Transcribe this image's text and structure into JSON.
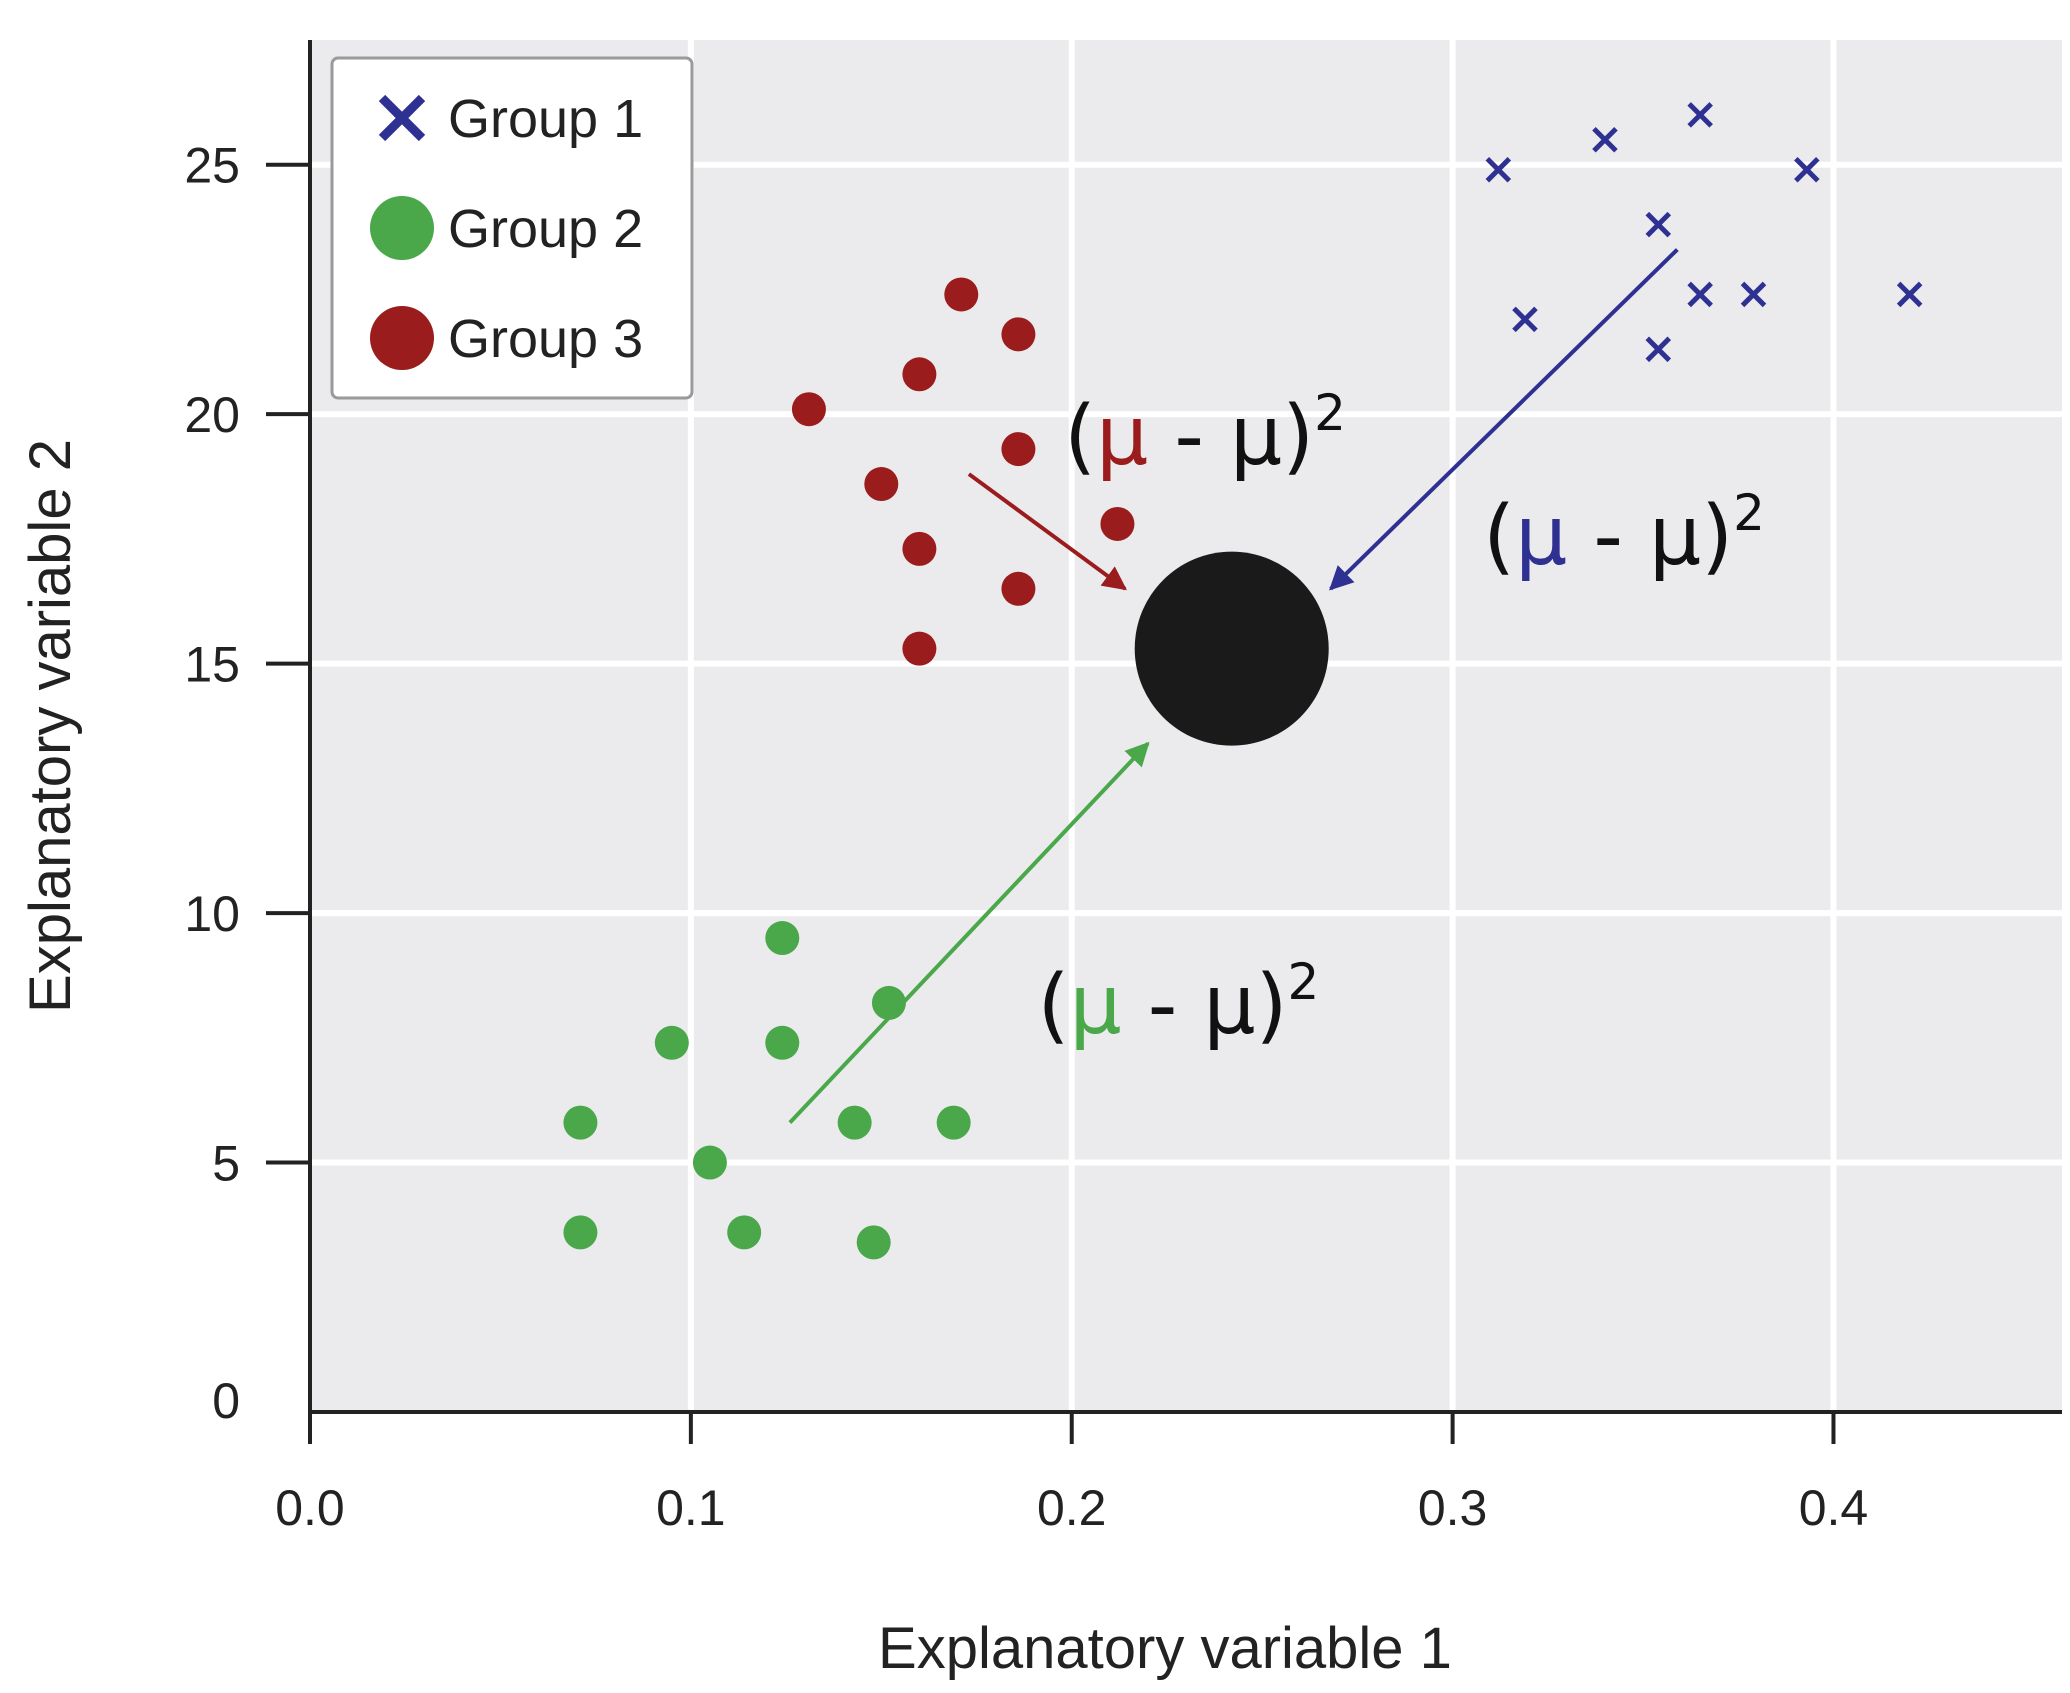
{
  "chart_data": {
    "type": "scatter",
    "title": "",
    "xlabel": "Explanatory variable 1",
    "ylabel": "Explanatory variable 2",
    "xlim": [
      0.0,
      0.46
    ],
    "ylim": [
      0,
      27.5
    ],
    "xticks": [
      0.0,
      0.1,
      0.2,
      0.3,
      0.4
    ],
    "xtick_labels": [
      "0.0",
      "0.1",
      "0.2",
      "0.3",
      "0.4"
    ],
    "yticks": [
      0,
      5,
      10,
      15,
      20,
      25
    ],
    "ytick_labels": [
      "0",
      "5",
      "10",
      "15",
      "20",
      "25"
    ],
    "grid": true,
    "legend_position": "top-left",
    "series": [
      {
        "name": "Group 1",
        "marker": "x",
        "color": "#2e3192",
        "points": [
          [
            0.312,
            24.9
          ],
          [
            0.34,
            25.5
          ],
          [
            0.365,
            26.0
          ],
          [
            0.393,
            24.9
          ],
          [
            0.354,
            23.8
          ],
          [
            0.319,
            21.9
          ],
          [
            0.365,
            22.4
          ],
          [
            0.379,
            22.4
          ],
          [
            0.42,
            22.4
          ],
          [
            0.354,
            21.3
          ]
        ]
      },
      {
        "name": "Group 2",
        "marker": "circle",
        "color": "#4aa84a",
        "points": [
          [
            0.124,
            9.5
          ],
          [
            0.095,
            7.4
          ],
          [
            0.124,
            7.4
          ],
          [
            0.152,
            8.2
          ],
          [
            0.071,
            5.8
          ],
          [
            0.143,
            5.8
          ],
          [
            0.169,
            5.8
          ],
          [
            0.105,
            5.0
          ],
          [
            0.071,
            3.6
          ],
          [
            0.114,
            3.6
          ],
          [
            0.148,
            3.4
          ]
        ]
      },
      {
        "name": "Group 3",
        "marker": "circle",
        "color": "#9b1c1c",
        "points": [
          [
            0.171,
            22.4
          ],
          [
            0.186,
            21.6
          ],
          [
            0.16,
            20.8
          ],
          [
            0.131,
            20.1
          ],
          [
            0.186,
            19.3
          ],
          [
            0.15,
            18.6
          ],
          [
            0.212,
            17.8
          ],
          [
            0.16,
            17.3
          ],
          [
            0.186,
            16.5
          ],
          [
            0.16,
            15.3
          ]
        ]
      }
    ],
    "overall_mean": {
      "point": [
        0.242,
        15.3
      ],
      "color": "#1a1a1a"
    },
    "annotations": [
      {
        "group": "Group 3",
        "text_open": "(",
        "mu_colored": "μ",
        "text_middle": " - μ)",
        "superscript": "2",
        "mu_color": "#9b1c1c",
        "text_position": [
          0.198,
          19.0
        ],
        "arrow_from": [
          0.173,
          18.8
        ],
        "arrow_to": [
          0.214,
          16.5
        ],
        "arrow_color": "#9b1c1c"
      },
      {
        "group": "Group 1",
        "text_open": "(",
        "mu_colored": "μ",
        "text_middle": " - μ)",
        "superscript": "2",
        "mu_color": "#2e3192",
        "text_position": [
          0.308,
          17.0
        ],
        "arrow_from": [
          0.359,
          23.3
        ],
        "arrow_to": [
          0.268,
          16.5
        ],
        "arrow_color": "#2e3192"
      },
      {
        "group": "Group 2",
        "text_open": "(",
        "mu_colored": "μ",
        "text_middle": " - μ)",
        "superscript": "2",
        "mu_color": "#4aa84a",
        "text_position": [
          0.191,
          7.6
        ],
        "arrow_from": [
          0.126,
          5.8
        ],
        "arrow_to": [
          0.22,
          13.4
        ],
        "arrow_color": "#4aa84a"
      }
    ],
    "colors": {
      "panel_background": "#ebebee",
      "grid": "#ffffff",
      "axis": "#222222"
    }
  }
}
